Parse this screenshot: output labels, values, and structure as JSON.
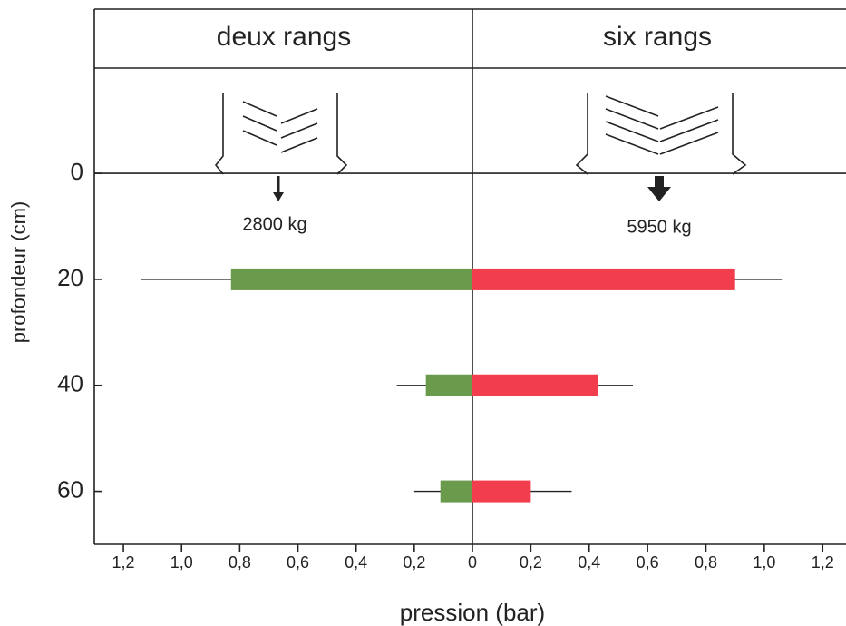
{
  "chart_data": {
    "type": "butterfly-bar",
    "headers": [
      "deux rangs",
      "six rangs"
    ],
    "annotations": [
      "2800 kg",
      "5950 kg"
    ],
    "y_label": "profondeur (cm)",
    "x_label": "pression (bar)",
    "ylim": [
      70,
      -31
    ],
    "yticks": [
      0,
      20,
      40,
      60
    ],
    "xlim_left": [
      0,
      1.3
    ],
    "xlim_right": [
      0,
      1.28
    ],
    "xticks_left": [
      {
        "value": 1.2,
        "label": "1,2"
      },
      {
        "value": 1.0,
        "label": "1,0"
      },
      {
        "value": 0.8,
        "label": "0,8"
      },
      {
        "value": 0.6,
        "label": "0,6"
      },
      {
        "value": 0.4,
        "label": "0,4"
      },
      {
        "value": 0.2,
        "label": "0,2"
      }
    ],
    "xticks_right": [
      0,
      {
        "value": 0.2,
        "label": "0,2"
      },
      {
        "value": 0.4,
        "label": "0,4"
      },
      {
        "value": 0.6,
        "label": "0,6"
      },
      {
        "value": 0.8,
        "label": "0,8"
      },
      {
        "value": 1.0,
        "label": "1,0"
      },
      {
        "value": 1.2,
        "label": "1,2"
      }
    ],
    "depths": [
      20,
      40,
      60
    ],
    "series": [
      {
        "side": "left",
        "color": "#6a9a4c",
        "values": [
          0.83,
          0.16,
          0.11
        ],
        "errors": [
          0.31,
          0.1,
          0.09
        ]
      },
      {
        "side": "right",
        "color": "#f23d4c",
        "values": [
          0.9,
          0.43,
          0.2
        ],
        "errors": [
          0.16,
          0.12,
          0.14
        ]
      }
    ]
  }
}
